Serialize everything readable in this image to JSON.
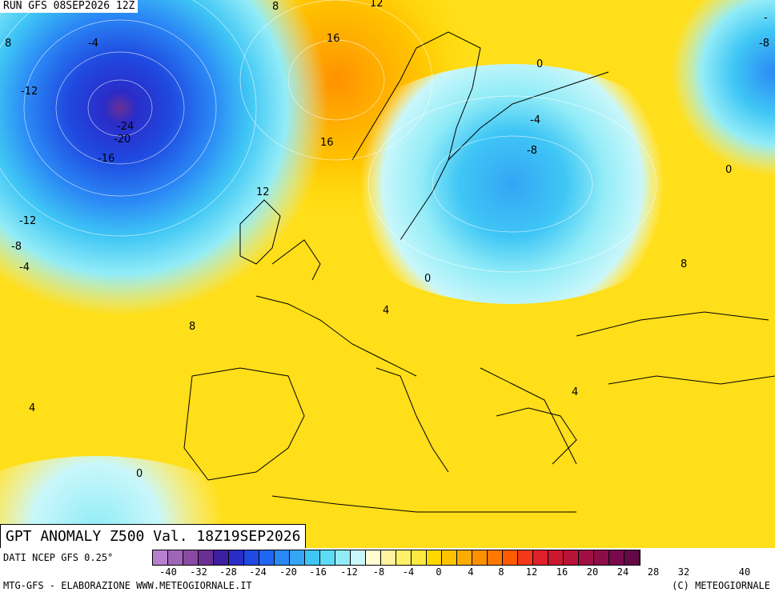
{
  "header": {
    "run": "RUN GFS 08SEP2026 12Z"
  },
  "title": "GPT ANOMALY Z500 Val. 18Z19SEP2026",
  "source": "DATI NCEP GFS 0.25°",
  "credit": "MTG-GFS - ELABORAZIONE WWW.METEOGIORNALE.IT",
  "copyright": "(C) METEOGIORNALE",
  "contour_labels": [
    "8",
    "8",
    "12",
    "-4",
    "16",
    "12",
    "-12",
    "-24",
    "-20",
    "-16",
    "16",
    "12",
    "-12",
    "-8",
    "-4",
    "8",
    "4",
    "0",
    "0",
    "-4",
    "-8",
    "0",
    "8",
    "4",
    "4",
    "0",
    "-8",
    "-"
  ],
  "scale": {
    "tick_labels": [
      "-40",
      "-32",
      "-28",
      "-24",
      "-20",
      "-16",
      "-12",
      "-8",
      "-4",
      "0",
      "4",
      "8",
      "12",
      "16",
      "20",
      "24",
      "28",
      "32",
      "40"
    ],
    "colors": [
      "#b97fcf",
      "#9f66b8",
      "#8a4aa3",
      "#6a2f95",
      "#3b1fa0",
      "#2a2cc8",
      "#1f49e0",
      "#1f66f0",
      "#2a88f5",
      "#34a6f5",
      "#3fc6f5",
      "#5cdcf5",
      "#92ecf7",
      "#c9f7fb",
      "#fffcd1",
      "#fff3a0",
      "#fff06a",
      "#ffe840",
      "#ffd800",
      "#ffc300",
      "#ffac00",
      "#ff9100",
      "#ff7800",
      "#ff5b00",
      "#f23a1a",
      "#e0202a",
      "#cc1730",
      "#b81338",
      "#a10f42",
      "#8c0c48",
      "#780a4c",
      "#640846"
    ]
  }
}
